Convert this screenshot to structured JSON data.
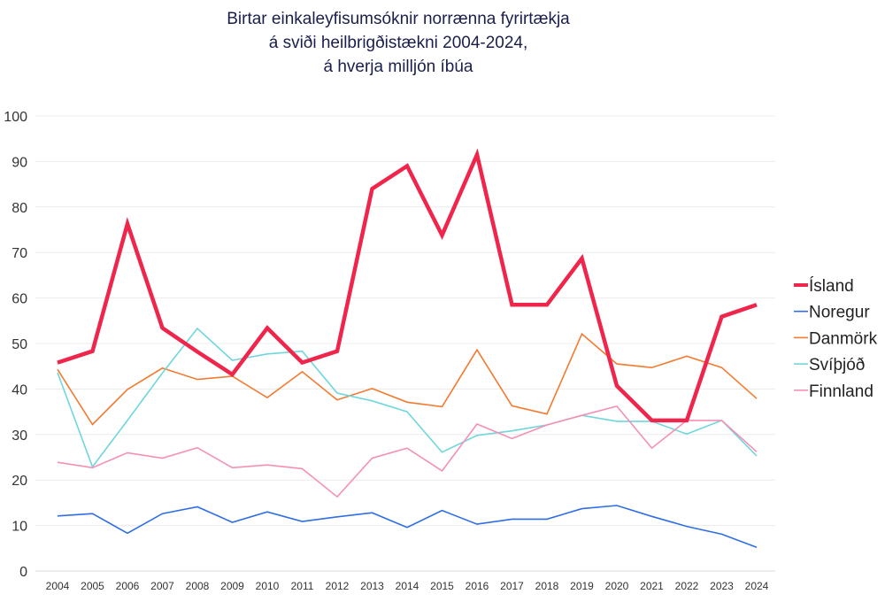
{
  "chart_data": {
    "type": "line",
    "title": [
      "Birtar einkaleyfisumsóknir norrænna fyrirtækja",
      "á sviði heilbrigðistækni 2004-2024,",
      "á hverja milljón íbúa"
    ],
    "xlabel": "",
    "ylabel": "",
    "ylim": [
      0,
      100
    ],
    "yticks": [
      0,
      10,
      20,
      30,
      40,
      50,
      60,
      70,
      80,
      90,
      100
    ],
    "grid": true,
    "legend": "right",
    "x": [
      "2004",
      "2005",
      "2006",
      "2007",
      "2008",
      "2009",
      "2010",
      "2011",
      "2012",
      "2013",
      "2014",
      "2015",
      "2016",
      "2017",
      "2018",
      "2019",
      "2020",
      "2021",
      "2022",
      "2023",
      "2024"
    ],
    "series": [
      {
        "name": "Ísland",
        "color": "#f0254b",
        "emphasis": true,
        "values": [
          45.8,
          48.3,
          76.3,
          53.4,
          48.2,
          43.2,
          53.4,
          45.8,
          48.3,
          84.0,
          89.0,
          73.8,
          91.5,
          58.5,
          58.5,
          68.7,
          40.7,
          33.1,
          33.1,
          55.9,
          58.5
        ]
      },
      {
        "name": "Noregur",
        "color": "#2f6de6",
        "values": [
          12.1,
          12.6,
          8.3,
          12.6,
          14.1,
          10.7,
          13.0,
          10.9,
          11.9,
          12.8,
          9.6,
          13.3,
          10.3,
          11.4,
          11.4,
          13.7,
          14.4,
          12.0,
          9.8,
          8.1,
          5.2
        ]
      },
      {
        "name": "Danmörk",
        "color": "#f47a30",
        "values": [
          44.3,
          32.2,
          39.9,
          44.6,
          42.1,
          42.8,
          38.1,
          43.8,
          37.6,
          40.1,
          37.1,
          36.1,
          48.6,
          36.3,
          34.5,
          52.1,
          45.5,
          44.7,
          47.2,
          44.7,
          37.9
        ]
      },
      {
        "name": "Svíþjóð",
        "color": "#6fd6dc",
        "values": [
          43.6,
          22.9,
          33.1,
          43.5,
          53.3,
          46.3,
          47.7,
          48.3,
          39.1,
          37.4,
          35.0,
          26.1,
          29.8,
          30.8,
          32.1,
          34.2,
          32.9,
          32.9,
          30.1,
          33.1,
          25.3
        ]
      },
      {
        "name": "Finnland",
        "color": "#f590b4",
        "values": [
          23.9,
          22.7,
          26.0,
          24.8,
          27.1,
          22.7,
          23.3,
          22.5,
          16.3,
          24.8,
          27.0,
          22.0,
          32.3,
          29.1,
          32.1,
          34.2,
          36.2,
          27.0,
          33.1,
          33.1,
          26.2
        ]
      }
    ]
  }
}
